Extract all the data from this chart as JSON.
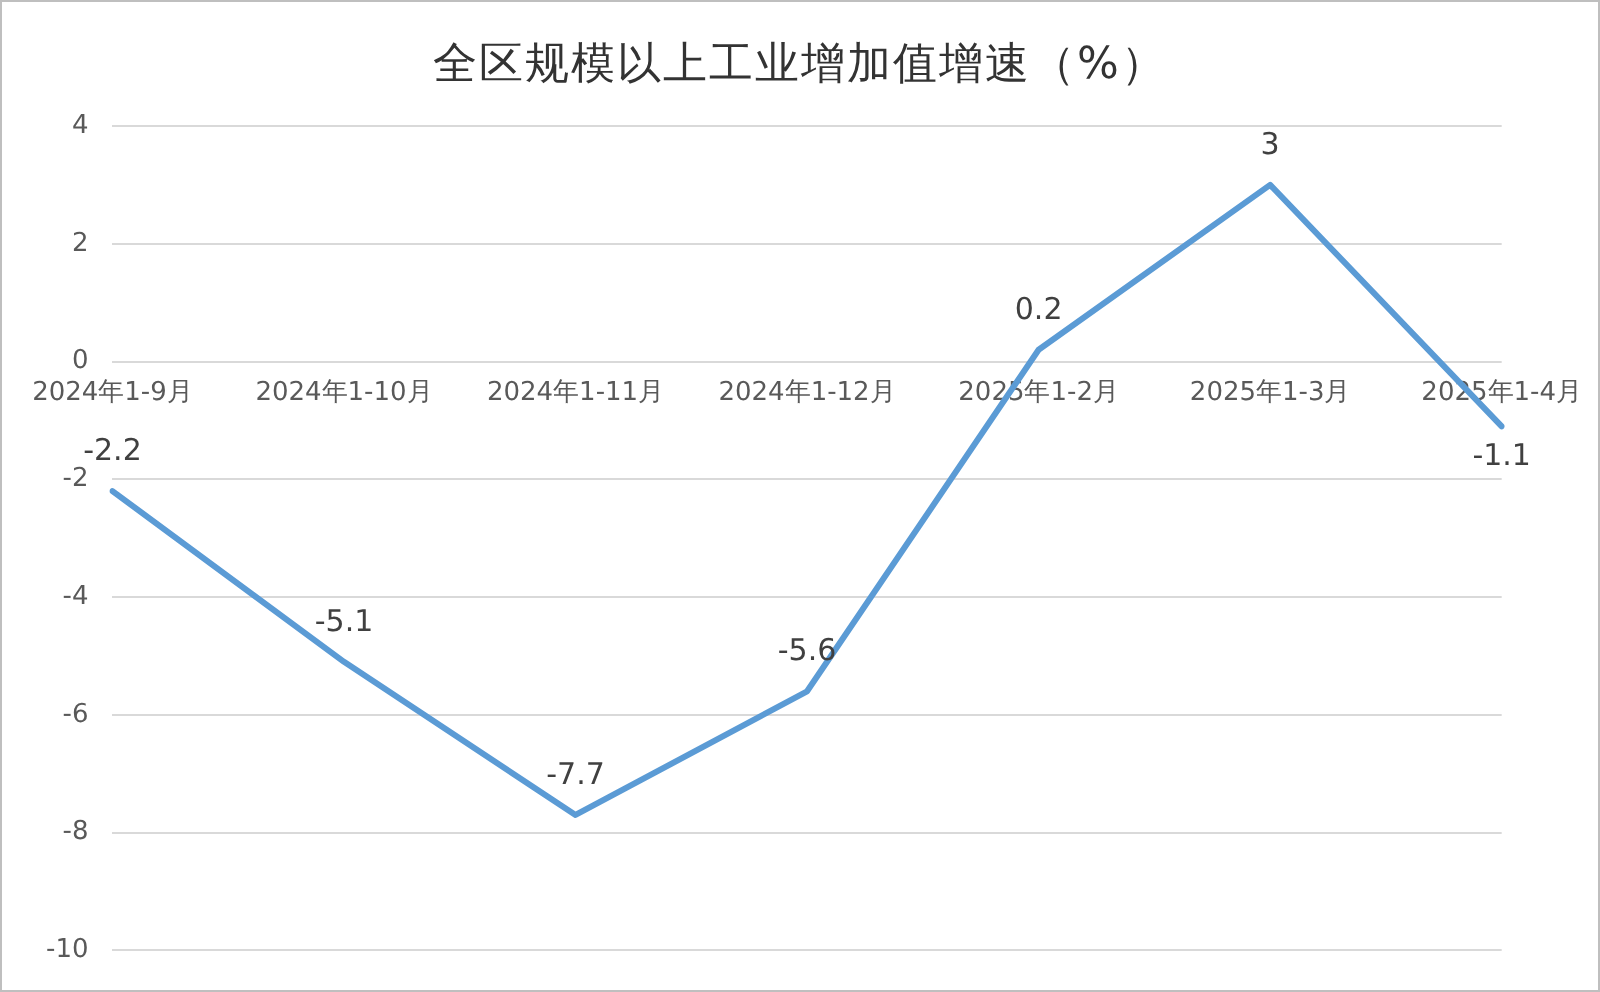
{
  "chart_data": {
    "type": "line",
    "title": "全区规模以上工业增加值增速（%）",
    "categories": [
      "2024年1-9月",
      "2024年1-10月",
      "2024年1-11月",
      "2024年1-12月",
      "2025年1-2月",
      "2025年1-3月",
      "2025年1-4月"
    ],
    "series": [
      {
        "color": "#5b9bd5",
        "values": [
          -2.2,
          -5.1,
          -7.7,
          -5.6,
          0.2,
          3,
          -1.1
        ]
      }
    ],
    "ylim": [
      -10,
      4
    ],
    "yticks": [
      -10,
      -8,
      -6,
      -4,
      -2,
      0,
      2,
      4
    ],
    "grid": "y",
    "legend": false,
    "marker": "none",
    "line_style": "solid",
    "data_labels": true
  }
}
